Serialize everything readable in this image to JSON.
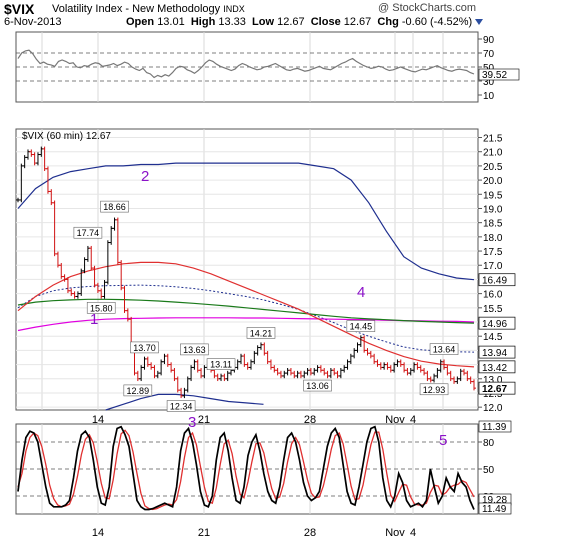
{
  "header": {
    "symbol": "$VIX",
    "name": "Volatility Index - New Methodology",
    "exchange": "INDX",
    "source": "@ StockCharts.com",
    "date": "6-Nov-2013",
    "open_label": "Open",
    "open": "13.01",
    "high_label": "High",
    "high": "13.33",
    "low_label": "Low",
    "low": "12.67",
    "close_label": "Close",
    "close": "12.67",
    "chg_label": "Chg",
    "chg": "-0.60 (-4.52%)"
  },
  "colors": {
    "price": "#000000",
    "down_bar": "#d01010",
    "ma_red": "#e03030",
    "ma_green": "#1a7a1a",
    "ma_magenta": "#e000e0",
    "band_blue": "#1f2f8f",
    "band_dotted": "#1f2f8f",
    "stoch_fast": "#000000",
    "stoch_slow": "#e03030",
    "wave": "#8b12c8"
  },
  "chart_data": [
    {
      "panel": "rsi",
      "type": "line",
      "y_ticks": [
        "90",
        "70",
        "50",
        "30",
        "10"
      ],
      "guides": [
        70,
        50,
        30
      ],
      "ylim": [
        0,
        100
      ],
      "current_label": "39.52",
      "series": [
        {
          "values": [
            62,
            70,
            73,
            74,
            69,
            61,
            55,
            57,
            54,
            53,
            51,
            58,
            60,
            58,
            55,
            56,
            50,
            49,
            52,
            51,
            54,
            56,
            55,
            51,
            52,
            53,
            55,
            52,
            54,
            57,
            55,
            50,
            47,
            45,
            48,
            42,
            40,
            35,
            38,
            36,
            39,
            37,
            42,
            48,
            51,
            50,
            46,
            44,
            41,
            45,
            50,
            56,
            60,
            58,
            54,
            51,
            49,
            47,
            45,
            47,
            52,
            55,
            53,
            50,
            48,
            46,
            47,
            50,
            51,
            53,
            55,
            52,
            49,
            46,
            45,
            47,
            48,
            46,
            44,
            45,
            47,
            49,
            51,
            48,
            47,
            46,
            49,
            52,
            55,
            57,
            60,
            62,
            58,
            55,
            52,
            50,
            48,
            49,
            51,
            50,
            47,
            45,
            46,
            48,
            50,
            48,
            46,
            44,
            43,
            45,
            47,
            46,
            48,
            50,
            52,
            49,
            47,
            45,
            44,
            46,
            47,
            46,
            45,
            42,
            40
          ]
        }
      ]
    },
    {
      "panel": "price",
      "type": "ohlc",
      "title": "$VIX (60 min) 12.67",
      "y_ticks": [
        "21.5",
        "21.0",
        "20.5",
        "20.0",
        "19.5",
        "19.0",
        "18.5",
        "18.0",
        "17.5",
        "17.0",
        "16.5",
        "16.0",
        "15.5",
        "15.0",
        "14.5",
        "14.0",
        "13.5",
        "13.0",
        "12.5",
        "12.0"
      ],
      "ylim": [
        11.9,
        21.8
      ],
      "x_tick_labels": [
        "14",
        "21",
        "28",
        "Nov",
        "4"
      ],
      "close": [
        19.3,
        20.5,
        20.8,
        21.0,
        20.9,
        20.6,
        20.9,
        21.1,
        20.4,
        19.6,
        19.2,
        17.4,
        17.0,
        16.6,
        16.5,
        16.1,
        16.0,
        15.9,
        16.0,
        16.8,
        17.2,
        17.6,
        16.9,
        16.3,
        16.1,
        15.9,
        16.4,
        17.8,
        18.3,
        18.6,
        17.1,
        16.2,
        15.4,
        15.1,
        14.2,
        13.2,
        13.0,
        13.4,
        13.7,
        13.5,
        13.4,
        13.1,
        13.2,
        13.6,
        13.8,
        13.5,
        13.3,
        13.0,
        12.6,
        12.4,
        12.6,
        13.0,
        13.4,
        13.6,
        13.3,
        13.1,
        13.4,
        13.6,
        13.3,
        13.1,
        13.0,
        13.1,
        13.0,
        13.2,
        13.3,
        13.4,
        13.6,
        13.8,
        13.5,
        13.4,
        13.6,
        13.9,
        14.1,
        14.2,
        13.9,
        13.6,
        13.4,
        13.3,
        13.2,
        13.1,
        13.2,
        13.3,
        13.2,
        13.1,
        13.2,
        13.1,
        13.2,
        13.3,
        13.2,
        13.3,
        13.4,
        13.3,
        13.2,
        13.1,
        13.3,
        13.2,
        13.1,
        13.3,
        13.4,
        13.6,
        13.8,
        14.0,
        14.2,
        14.45,
        14.0,
        13.9,
        13.8,
        13.6,
        13.5,
        13.4,
        13.5,
        13.4,
        13.3,
        13.5,
        13.6,
        13.5,
        13.3,
        13.2,
        13.3,
        13.5,
        13.4,
        13.3,
        13.2,
        13.0,
        12.95,
        13.1,
        13.3,
        13.6,
        13.4,
        13.2,
        13.0,
        12.9,
        13.0,
        13.27,
        13.2,
        13.0,
        12.9,
        12.67
      ],
      "series": [
        {
          "name": "MA red",
          "values": [
            15.4,
            15.9,
            16.3,
            16.6,
            16.8,
            16.95,
            17.05,
            17.1,
            17.1,
            17.05,
            16.9,
            16.7,
            16.45,
            16.2,
            15.95,
            15.7,
            15.45,
            15.15,
            14.85,
            14.55,
            14.25,
            14.0,
            13.78,
            13.62,
            13.52,
            13.46,
            13.42
          ]
        },
        {
          "name": "MA green",
          "values": [
            15.6,
            15.7,
            15.75,
            15.78,
            15.8,
            15.8,
            15.79,
            15.77,
            15.74,
            15.7,
            15.66,
            15.61,
            15.56,
            15.5,
            15.44,
            15.38,
            15.32,
            15.26,
            15.2,
            15.15,
            15.11,
            15.08,
            15.05,
            15.02,
            15.0,
            14.98,
            14.96
          ]
        },
        {
          "name": "MA magenta",
          "values": [
            14.7,
            14.82,
            14.92,
            15.0,
            15.06,
            15.1,
            15.12,
            15.13,
            15.14,
            15.15,
            15.15,
            15.15,
            15.15,
            15.14,
            15.14,
            15.13,
            15.12,
            15.11,
            15.1,
            15.09,
            15.08,
            15.06,
            15.05,
            15.04,
            15.03,
            15.02,
            15.0
          ]
        },
        {
          "name": "Upper band",
          "values": [
            19.0,
            19.7,
            20.1,
            20.3,
            20.4,
            20.5,
            20.5,
            20.55,
            20.55,
            20.6,
            20.6,
            20.6,
            20.6,
            20.6,
            20.6,
            20.6,
            20.6,
            20.5,
            20.4,
            20.0,
            19.2,
            18.2,
            17.3,
            16.9,
            16.7,
            16.55,
            16.49
          ]
        },
        {
          "name": "Lower band",
          "values": [
            null,
            null,
            null,
            null,
            null,
            11.9,
            12.1,
            12.3,
            12.45,
            12.45,
            12.4,
            12.3,
            12.2,
            12.15,
            12.1
          ]
        },
        {
          "name": "Middle dotted",
          "values": [
            15.5,
            15.9,
            16.1,
            16.2,
            16.25,
            16.28,
            16.29,
            16.3,
            16.28,
            16.24,
            16.18,
            16.1,
            16.0,
            15.9,
            15.78,
            15.62,
            15.44,
            15.22,
            14.98,
            14.72,
            14.5,
            14.3,
            14.12,
            14.02,
            13.98,
            13.95,
            13.94
          ]
        }
      ],
      "right_value_labels": [
        "16.49",
        "14.96",
        "13.94",
        "13.42",
        "12.67"
      ],
      "annotations": [
        {
          "text": "18.66",
          "x_index": 29
        },
        {
          "text": "17.74",
          "x_index": 21
        },
        {
          "text": "15.80",
          "x_index": 25
        },
        {
          "text": "13.70",
          "x_index": 38
        },
        {
          "text": "13.63",
          "x_index": 53
        },
        {
          "text": "14.21",
          "x_index": 73
        },
        {
          "text": "14.45",
          "x_index": 103
        },
        {
          "text": "13.64",
          "x_index": 128
        },
        {
          "text": "12.89",
          "x_index": 36
        },
        {
          "text": "12.34",
          "x_index": 49
        },
        {
          "text": "13.11",
          "x_index": 61
        },
        {
          "text": "13.06",
          "x_index": 90
        },
        {
          "text": "12.93",
          "x_index": 125
        }
      ],
      "wave_labels": [
        "2",
        "1",
        "3",
        "4",
        "5"
      ]
    },
    {
      "panel": "stochastic",
      "type": "line",
      "y_ticks": [
        "80",
        "50",
        "20"
      ],
      "guides": [
        80,
        50,
        20
      ],
      "ylim": [
        0,
        100
      ],
      "right_value_labels": [
        "11.39",
        "19.28",
        "11.49"
      ],
      "x_tick_labels": [
        "14",
        "21",
        "28",
        "Nov",
        "4"
      ],
      "series": [
        {
          "name": "Fast",
          "values": [
            25,
            60,
            85,
            92,
            90,
            80,
            55,
            30,
            12,
            8,
            8,
            8,
            10,
            15,
            40,
            70,
            88,
            92,
            85,
            60,
            30,
            12,
            10,
            30,
            75,
            95,
            97,
            88,
            75,
            45,
            15,
            8,
            5,
            5,
            6,
            8,
            10,
            12,
            10,
            8,
            30,
            70,
            90,
            95,
            80,
            55,
            25,
            10,
            8,
            20,
            60,
            85,
            90,
            70,
            40,
            15,
            12,
            30,
            65,
            80,
            88,
            70,
            45,
            25,
            15,
            12,
            30,
            60,
            85,
            90,
            80,
            60,
            35,
            20,
            15,
            18,
            25,
            50,
            75,
            90,
            95,
            85,
            55,
            25,
            12,
            10,
            30,
            55,
            80,
            95,
            97,
            80,
            40,
            15,
            8,
            20,
            45,
            35,
            15,
            8,
            10,
            12,
            8,
            15,
            50,
            30,
            12,
            20,
            40,
            30,
            25,
            45,
            35,
            30,
            15,
            5
          ]
        },
        {
          "name": "Slow",
          "values": [
            30,
            45,
            70,
            85,
            90,
            87,
            75,
            55,
            32,
            17,
            10,
            8,
            9,
            11,
            22,
            42,
            66,
            83,
            88,
            79,
            58,
            34,
            18,
            17,
            38,
            67,
            89,
            93,
            87,
            69,
            45,
            23,
            9,
            6,
            5,
            6,
            8,
            10,
            11,
            10,
            16,
            36,
            63,
            85,
            90,
            77,
            53,
            30,
            14,
            12,
            29,
            55,
            78,
            82,
            67,
            42,
            22,
            18,
            36,
            58,
            78,
            79,
            68,
            47,
            28,
            17,
            19,
            34,
            58,
            78,
            85,
            77,
            58,
            38,
            23,
            18,
            19,
            31,
            50,
            72,
            87,
            90,
            78,
            55,
            31,
            16,
            17,
            32,
            55,
            77,
            91,
            91,
            72,
            45,
            21,
            14,
            24,
            33,
            32,
            19,
            11,
            10,
            10,
            12,
            24,
            32,
            31,
            21,
            24,
            30,
            32,
            33,
            37,
            35,
            27,
            19
          ]
        }
      ],
      "wave_labels": [
        "5"
      ]
    }
  ]
}
